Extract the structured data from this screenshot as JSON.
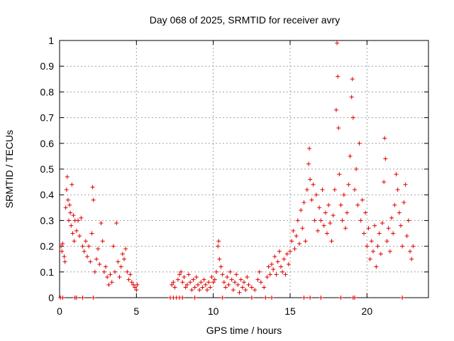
{
  "chart_data": {
    "type": "scatter",
    "title": "Day 068 of 2025, SRMTID for receiver avry",
    "xlabel": "GPS time / hours",
    "ylabel": "SRMTID / TECUs",
    "xlim": [
      0,
      24
    ],
    "ylim": [
      0,
      1
    ],
    "xticks": [
      0,
      5,
      10,
      15,
      20
    ],
    "yticks": [
      0,
      0.1,
      0.2,
      0.3,
      0.4,
      0.5,
      0.6,
      0.7,
      0.8,
      0.9,
      1
    ],
    "xtick_labels": [
      "0",
      "5",
      "10",
      "15",
      "20"
    ],
    "ytick_labels": [
      "0",
      "0.1",
      "0.2",
      "0.3",
      "0.4",
      "0.5",
      "0.6",
      "0.7",
      "0.8",
      "0.9",
      "1"
    ],
    "grid": true,
    "marker": "plus",
    "color": "#e00000",
    "series": [
      {
        "name": "SRMTID",
        "points": [
          [
            0.1,
            0.2
          ],
          [
            0.15,
            0.18
          ],
          [
            0.2,
            0.21
          ],
          [
            0.3,
            0.16
          ],
          [
            0.35,
            0.14
          ],
          [
            0.4,
            0.35
          ],
          [
            0.45,
            0.42
          ],
          [
            0.5,
            0.47
          ],
          [
            0.55,
            0.38
          ],
          [
            0.6,
            0.3
          ],
          [
            0.65,
            0.36
          ],
          [
            0.7,
            0.33
          ],
          [
            0.75,
            0.28
          ],
          [
            0.8,
            0.44
          ],
          [
            0.85,
            0.25
          ],
          [
            0.9,
            0.32
          ],
          [
            0.95,
            0.22
          ],
          [
            1.0,
            0.3
          ],
          [
            1.1,
            0.26
          ],
          [
            1.2,
            0.3
          ],
          [
            1.3,
            0.24
          ],
          [
            1.4,
            0.31
          ],
          [
            1.5,
            0.2
          ],
          [
            1.6,
            0.18
          ],
          [
            1.7,
            0.22
          ],
          [
            1.8,
            0.16
          ],
          [
            1.9,
            0.2
          ],
          [
            2.0,
            0.14
          ],
          [
            2.1,
            0.25
          ],
          [
            2.15,
            0.43
          ],
          [
            2.2,
            0.38
          ],
          [
            2.3,
            0.1
          ],
          [
            2.4,
            0.15
          ],
          [
            2.5,
            0.19
          ],
          [
            2.6,
            0.13
          ],
          [
            2.7,
            0.29
          ],
          [
            2.8,
            0.22
          ],
          [
            2.9,
            0.1
          ],
          [
            3.0,
            0.12
          ],
          [
            3.1,
            0.08
          ],
          [
            3.2,
            0.05
          ],
          [
            3.3,
            0.09
          ],
          [
            3.4,
            0.06
          ],
          [
            3.5,
            0.2
          ],
          [
            3.6,
            0.1
          ],
          [
            3.7,
            0.29
          ],
          [
            3.8,
            0.14
          ],
          [
            3.9,
            0.08
          ],
          [
            4.0,
            0.12
          ],
          [
            4.1,
            0.17
          ],
          [
            4.2,
            0.15
          ],
          [
            4.3,
            0.19
          ],
          [
            4.4,
            0.1
          ],
          [
            4.5,
            0.07
          ],
          [
            4.6,
            0.09
          ],
          [
            4.7,
            0.06
          ],
          [
            4.8,
            0.05
          ],
          [
            4.9,
            0.04
          ],
          [
            5.0,
            0.03
          ],
          [
            5.05,
            0.05
          ],
          [
            7.3,
            0.05
          ],
          [
            7.4,
            0.06
          ],
          [
            7.5,
            0.04
          ],
          [
            7.7,
            0.07
          ],
          [
            7.8,
            0.09
          ],
          [
            7.9,
            0.1
          ],
          [
            8.0,
            0.06
          ],
          [
            8.1,
            0.08
          ],
          [
            8.2,
            0.04
          ],
          [
            8.3,
            0.05
          ],
          [
            8.4,
            0.09
          ],
          [
            8.5,
            0.06
          ],
          [
            8.6,
            0.03
          ],
          [
            8.7,
            0.07
          ],
          [
            8.8,
            0.04
          ],
          [
            8.9,
            0.08
          ],
          [
            9.0,
            0.05
          ],
          [
            9.1,
            0.03
          ],
          [
            9.2,
            0.06
          ],
          [
            9.3,
            0.04
          ],
          [
            9.4,
            0.07
          ],
          [
            9.5,
            0.05
          ],
          [
            9.6,
            0.03
          ],
          [
            9.7,
            0.06
          ],
          [
            9.8,
            0.04
          ],
          [
            9.9,
            0.08
          ],
          [
            10.0,
            0.06
          ],
          [
            10.1,
            0.07
          ],
          [
            10.2,
            0.1
          ],
          [
            10.3,
            0.2
          ],
          [
            10.35,
            0.22
          ],
          [
            10.4,
            0.15
          ],
          [
            10.5,
            0.12
          ],
          [
            10.6,
            0.09
          ],
          [
            10.7,
            0.06
          ],
          [
            10.8,
            0.04
          ],
          [
            10.9,
            0.08
          ],
          [
            11.0,
            0.05
          ],
          [
            11.1,
            0.1
          ],
          [
            11.2,
            0.07
          ],
          [
            11.3,
            0.03
          ],
          [
            11.4,
            0.06
          ],
          [
            11.5,
            0.09
          ],
          [
            11.6,
            0.05
          ],
          [
            11.7,
            0.02
          ],
          [
            11.8,
            0.07
          ],
          [
            11.9,
            0.04
          ],
          [
            12.0,
            0.06
          ],
          [
            12.1,
            0.03
          ],
          [
            12.2,
            0.08
          ],
          [
            12.3,
            0.05
          ],
          [
            12.5,
            0.04
          ],
          [
            12.7,
            0.03
          ],
          [
            12.9,
            0.07
          ],
          [
            13.0,
            0.1
          ],
          [
            13.1,
            0.06
          ],
          [
            13.3,
            0.04
          ],
          [
            13.5,
            0.08
          ],
          [
            13.6,
            0.12
          ],
          [
            13.7,
            0.09
          ],
          [
            13.8,
            0.13
          ],
          [
            13.9,
            0.11
          ],
          [
            14.0,
            0.16
          ],
          [
            14.1,
            0.09
          ],
          [
            14.2,
            0.14
          ],
          [
            14.3,
            0.18
          ],
          [
            14.4,
            0.12
          ],
          [
            14.5,
            0.1
          ],
          [
            14.6,
            0.15
          ],
          [
            14.7,
            0.09
          ],
          [
            14.8,
            0.17
          ],
          [
            14.9,
            0.13
          ],
          [
            15.0,
            0.18
          ],
          [
            15.1,
            0.22
          ],
          [
            15.2,
            0.26
          ],
          [
            15.3,
            0.19
          ],
          [
            15.4,
            0.24
          ],
          [
            15.5,
            0.3
          ],
          [
            15.6,
            0.21
          ],
          [
            15.7,
            0.34
          ],
          [
            15.8,
            0.27
          ],
          [
            15.9,
            0.37
          ],
          [
            16.0,
            0.22
          ],
          [
            16.1,
            0.42
          ],
          [
            16.2,
            0.52
          ],
          [
            16.25,
            0.58
          ],
          [
            16.3,
            0.46
          ],
          [
            16.4,
            0.38
          ],
          [
            16.5,
            0.44
          ],
          [
            16.6,
            0.3
          ],
          [
            16.7,
            0.4
          ],
          [
            16.8,
            0.26
          ],
          [
            16.9,
            0.35
          ],
          [
            17.0,
            0.3
          ],
          [
            17.1,
            0.42
          ],
          [
            17.2,
            0.28
          ],
          [
            17.3,
            0.33
          ],
          [
            17.4,
            0.25
          ],
          [
            17.5,
            0.36
          ],
          [
            17.6,
            0.29
          ],
          [
            17.7,
            0.22
          ],
          [
            17.8,
            0.32
          ],
          [
            17.9,
            0.42
          ],
          [
            18.0,
            0.73
          ],
          [
            18.05,
            0.99
          ],
          [
            18.1,
            0.86
          ],
          [
            18.15,
            0.66
          ],
          [
            18.2,
            0.48
          ],
          [
            18.3,
            0.36
          ],
          [
            18.4,
            0.3
          ],
          [
            18.5,
            0.4
          ],
          [
            18.6,
            0.27
          ],
          [
            18.7,
            0.33
          ],
          [
            18.8,
            0.44
          ],
          [
            18.9,
            0.55
          ],
          [
            19.0,
            0.78
          ],
          [
            19.05,
            0.85
          ],
          [
            19.1,
            0.7
          ],
          [
            19.2,
            0.42
          ],
          [
            19.3,
            0.5
          ],
          [
            19.4,
            0.36
          ],
          [
            19.5,
            0.6
          ],
          [
            19.6,
            0.3
          ],
          [
            19.7,
            0.38
          ],
          [
            19.8,
            0.25
          ],
          [
            19.9,
            0.33
          ],
          [
            20.0,
            0.2
          ],
          [
            20.1,
            0.27
          ],
          [
            20.2,
            0.15
          ],
          [
            20.3,
            0.22
          ],
          [
            20.4,
            0.18
          ],
          [
            20.5,
            0.28
          ],
          [
            20.6,
            0.12
          ],
          [
            20.7,
            0.2
          ],
          [
            20.8,
            0.25
          ],
          [
            20.9,
            0.17
          ],
          [
            21.0,
            0.29
          ],
          [
            21.1,
            0.45
          ],
          [
            21.15,
            0.62
          ],
          [
            21.2,
            0.54
          ],
          [
            21.3,
            0.22
          ],
          [
            21.4,
            0.27
          ],
          [
            21.5,
            0.18
          ],
          [
            21.6,
            0.31
          ],
          [
            21.7,
            0.25
          ],
          [
            21.8,
            0.36
          ],
          [
            21.9,
            0.48
          ],
          [
            22.0,
            0.42
          ],
          [
            22.1,
            0.33
          ],
          [
            22.2,
            0.28
          ],
          [
            22.3,
            0.2
          ],
          [
            22.4,
            0.37
          ],
          [
            22.5,
            0.44
          ],
          [
            22.6,
            0.24
          ],
          [
            22.7,
            0.3
          ],
          [
            22.8,
            0.18
          ],
          [
            22.9,
            0.15
          ],
          [
            23.0,
            0.2
          ]
        ],
        "zero_points": [
          0.05,
          0.2,
          1.0,
          1.1,
          1.5,
          2.2,
          7.2,
          7.4,
          7.6,
          7.8,
          8.0,
          8.8,
          10.6,
          12.5,
          13.4,
          13.8,
          15.9,
          16.3,
          17.0,
          18.3,
          19.1,
          19.2,
          22.3
        ]
      }
    ]
  }
}
